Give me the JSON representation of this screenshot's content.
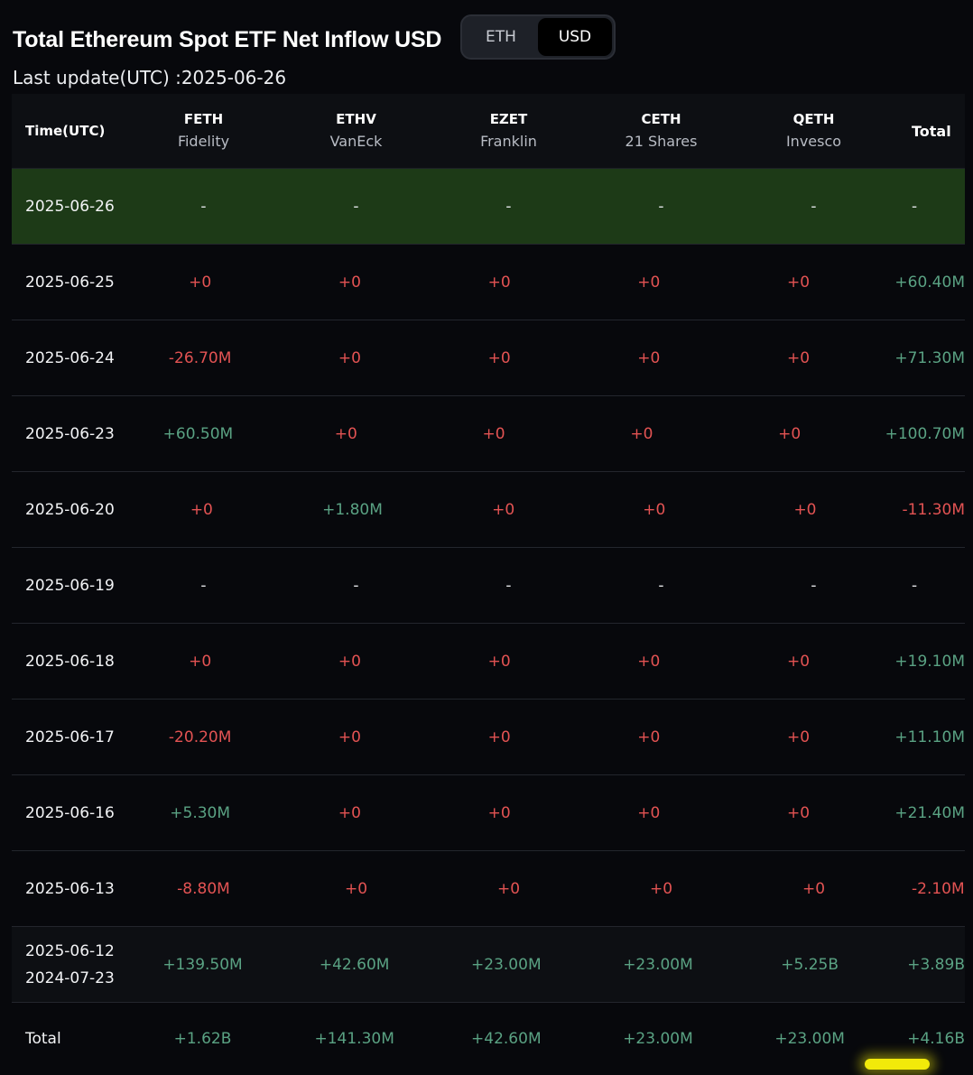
{
  "title": "Total Ethereum Spot ETF Net Inflow USD",
  "toggle": {
    "options": [
      "ETH",
      "USD"
    ],
    "selected": "USD"
  },
  "last_update": "Last update(UTC) :2025-06-26",
  "columns": {
    "date": "Time(UTC)",
    "funds": [
      {
        "ticker": "FETH",
        "issuer": "Fidelity"
      },
      {
        "ticker": "ETHV",
        "issuer": "VanEck"
      },
      {
        "ticker": "EZET",
        "issuer": "Franklin"
      },
      {
        "ticker": "CETH",
        "issuer": "21 Shares"
      },
      {
        "ticker": "QETH",
        "issuer": "Invesco"
      }
    ],
    "total": "Total"
  },
  "rows": [
    {
      "date": "2025-06-26",
      "values": [
        "-",
        "-",
        "-",
        "-",
        "-"
      ],
      "total": "-"
    },
    {
      "date": "2025-06-25",
      "values": [
        "+0",
        "+0",
        "+0",
        "+0",
        "+0"
      ],
      "total": "+60.40M"
    },
    {
      "date": "2025-06-24",
      "values": [
        "-26.70M",
        "+0",
        "+0",
        "+0",
        "+0"
      ],
      "total": "+71.30M"
    },
    {
      "date": "2025-06-23",
      "values": [
        "+60.50M",
        "+0",
        "+0",
        "+0",
        "+0"
      ],
      "total": "+100.70M"
    },
    {
      "date": "2025-06-20",
      "values": [
        "+0",
        "+1.80M",
        "+0",
        "+0",
        "+0"
      ],
      "total": "-11.30M"
    },
    {
      "date": "2025-06-19",
      "values": [
        "-",
        "-",
        "-",
        "-",
        "-"
      ],
      "total": "-"
    },
    {
      "date": "2025-06-18",
      "values": [
        "+0",
        "+0",
        "+0",
        "+0",
        "+0"
      ],
      "total": "+19.10M"
    },
    {
      "date": "2025-06-17",
      "values": [
        "-20.20M",
        "+0",
        "+0",
        "+0",
        "+0"
      ],
      "total": "+11.10M"
    },
    {
      "date": "2025-06-16",
      "values": [
        "+5.30M",
        "+0",
        "+0",
        "+0",
        "+0"
      ],
      "total": "+21.40M"
    },
    {
      "date": "2025-06-13",
      "values": [
        "-8.80M",
        "+0",
        "+0",
        "+0",
        "+0"
      ],
      "total": "-2.10M"
    }
  ],
  "range_row": {
    "date_start": "2025-06-12",
    "date_end": "2024-07-23",
    "values": [
      "+139.50M",
      "+42.60M",
      "+23.00M",
      "+23.00M",
      "+5.25B"
    ],
    "total": "+3.89B"
  },
  "total_row": {
    "label": "Total",
    "values": [
      "+1.62B",
      "+141.30M",
      "+42.60M",
      "+23.00M",
      "+23.00M"
    ],
    "total": "+4.16B"
  },
  "colors": {
    "positive": "#5aa283",
    "negative": "#e35353",
    "highlight_row": "#1d3a17",
    "marker": "#f2ea0a"
  }
}
